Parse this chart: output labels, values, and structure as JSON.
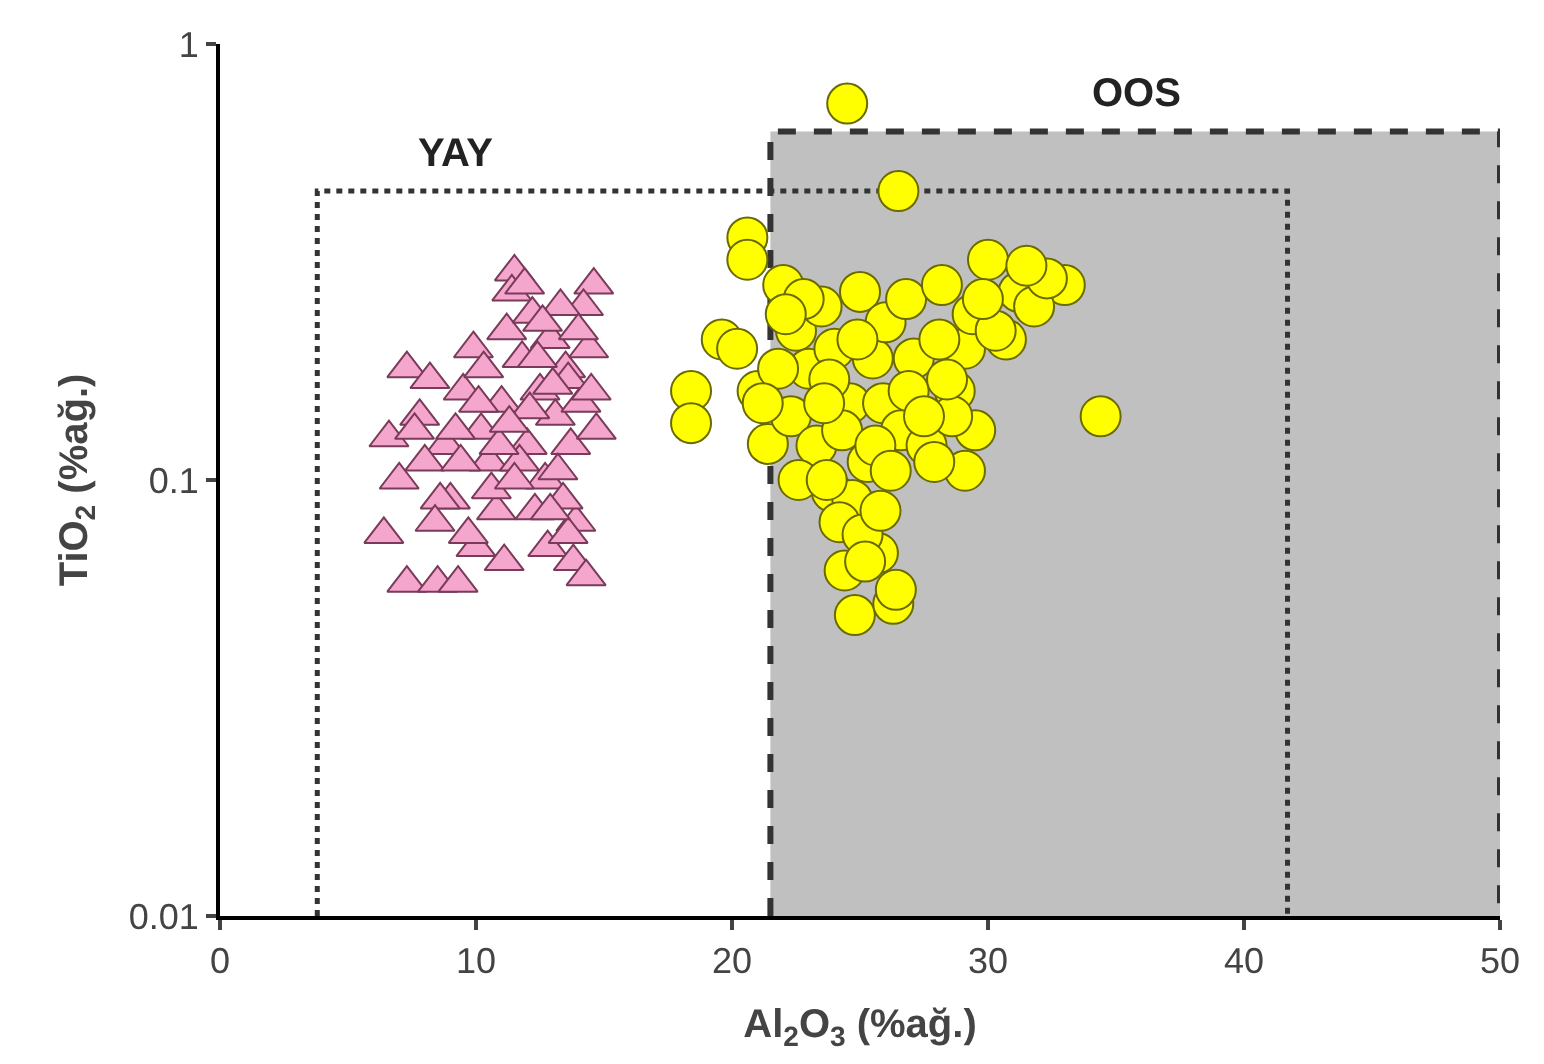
{
  "chart_data": {
    "type": "scatter",
    "xlabel": "Al$_{2}$O$_{3}$ (%ağ.)",
    "ylabel": "TiO$_{2}$ (%ağ.)",
    "xlim": [
      0,
      50
    ],
    "xticks": [
      0,
      10,
      20,
      30,
      40,
      50
    ],
    "ylim": [
      0.01,
      1
    ],
    "yticks": [
      0.01,
      0.1,
      1
    ],
    "log": true,
    "legend": false,
    "series": [
      {
        "name": "OOS",
        "type": "area",
        "color": "#c0c0c0",
        "line_style": "dashed",
        "marker": "none",
        "x": [
          21.5,
          21.5,
          50,
          50
        ],
        "values": [
          0.01,
          0.63,
          0.63,
          0.01
        ]
      },
      {
        "name": "YAY",
        "type": "line",
        "color": "#333333",
        "line_style": "dotted",
        "marker": "none",
        "x": [
          3.8,
          3.8,
          41.7,
          41.7
        ],
        "values": [
          0.01,
          0.46,
          0.46,
          0.01
        ]
      },
      {
        "color": "#f4a6cc",
        "marker": "triangle",
        "x": [
          11.5,
          14.6,
          14.2,
          7.3,
          6.6,
          7.3,
          8.5,
          9.3,
          6.4,
          7.0,
          7.8,
          8.2,
          8.8,
          9.0,
          9.5,
          9.9,
          10.2,
          10.5,
          10.8,
          11.0,
          11.2,
          11.4,
          11.8,
          12.0,
          12.2,
          12.5,
          12.7,
          12.9,
          13.1,
          13.3,
          13.5,
          13.7,
          13.9,
          14.1,
          14.4,
          14.7,
          10.0,
          10.6,
          11.1,
          11.7,
          12.3,
          12.8,
          13.4,
          13.8,
          14.3,
          8.0,
          8.6,
          9.2,
          9.7,
          10.3,
          10.9,
          11.5,
          12.1,
          12.6,
          13.2,
          13.6,
          14.0,
          12.4,
          13.0,
          11.3,
          10.1,
          9.4,
          8.4,
          7.6,
          13.6,
          12.9,
          14.5,
          11.9
        ],
        "values": [
          0.3,
          0.28,
          0.25,
          0.18,
          0.125,
          0.058,
          0.058,
          0.058,
          0.075,
          0.1,
          0.14,
          0.17,
          0.12,
          0.09,
          0.16,
          0.2,
          0.13,
          0.11,
          0.085,
          0.15,
          0.22,
          0.27,
          0.19,
          0.12,
          0.24,
          0.16,
          0.1,
          0.21,
          0.14,
          0.25,
          0.18,
          0.12,
          0.08,
          0.15,
          0.2,
          0.13,
          0.07,
          0.095,
          0.065,
          0.11,
          0.085,
          0.07,
          0.09,
          0.065,
          0.06,
          0.11,
          0.09,
          0.13,
          0.075,
          0.18,
          0.12,
          0.1,
          0.145,
          0.23,
          0.105,
          0.17,
          0.22,
          0.19,
          0.165,
          0.135,
          0.15,
          0.11,
          0.08,
          0.13,
          0.075,
          0.085,
          0.16,
          0.28
        ]
      },
      {
        "color": "#ffff00",
        "marker": "circle",
        "x": [
          24.5,
          26.5,
          20.6,
          20.6,
          18.4,
          18.4,
          34.4,
          24.8,
          26.3,
          26.4,
          33.0,
          22.0,
          19.6,
          29.1,
          30.7,
          29.5,
          29.1,
          25.7,
          23.9,
          21.4,
          20.2,
          21.0,
          22.5,
          23.0,
          23.5,
          24.0,
          24.6,
          25.0,
          25.5,
          26.0,
          26.8,
          28.2,
          28.7,
          29.4,
          30.0,
          31.2,
          31.8,
          32.3,
          22.3,
          22.8,
          23.3,
          23.8,
          24.3,
          24.9,
          25.3,
          25.9,
          26.6,
          27.1,
          27.6,
          28.1,
          28.6,
          21.8,
          22.6,
          23.6,
          24.7,
          25.6,
          26.9,
          27.9,
          24.2,
          25.1,
          25.8,
          24.4,
          23.7,
          25.2,
          30.3,
          31.5,
          29.8,
          22.1,
          21.2,
          28.4,
          27.5,
          26.2
        ],
        "values": [
          0.73,
          0.46,
          0.36,
          0.32,
          0.16,
          0.135,
          0.14,
          0.049,
          0.052,
          0.056,
          0.28,
          0.28,
          0.21,
          0.2,
          0.21,
          0.13,
          0.105,
          0.068,
          0.094,
          0.121,
          0.2,
          0.16,
          0.22,
          0.18,
          0.25,
          0.2,
          0.15,
          0.27,
          0.19,
          0.23,
          0.26,
          0.28,
          0.16,
          0.24,
          0.32,
          0.27,
          0.25,
          0.29,
          0.14,
          0.26,
          0.12,
          0.17,
          0.13,
          0.21,
          0.11,
          0.15,
          0.13,
          0.19,
          0.12,
          0.21,
          0.14,
          0.18,
          0.1,
          0.15,
          0.09,
          0.12,
          0.16,
          0.11,
          0.08,
          0.075,
          0.085,
          0.062,
          0.1,
          0.065,
          0.22,
          0.31,
          0.26,
          0.24,
          0.15,
          0.17,
          0.14,
          0.105
        ]
      }
    ]
  }
}
